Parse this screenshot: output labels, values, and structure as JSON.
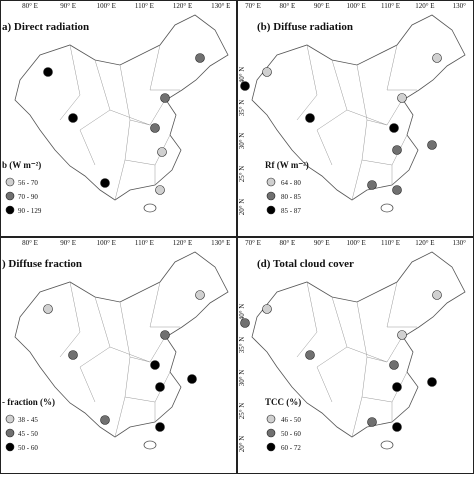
{
  "panels": [
    {
      "title": "a) Direct radiation",
      "x_ticks": [
        "80° E",
        "90° E",
        "100° E",
        "110° E",
        "120° E",
        "130° E"
      ],
      "y_ticks": [],
      "legend": {
        "title": "b (W m⁻²)",
        "items": [
          "56 - 70",
          "70 - 90",
          "90 - 129"
        ]
      }
    },
    {
      "title": "(b) Diffuse radiation",
      "x_ticks": [
        "70° E",
        "80° E",
        "90° E",
        "100° E",
        "110° E",
        "120° E",
        "130°"
      ],
      "y_ticks": [
        "40° N",
        "35° N",
        "30° N",
        "25° N",
        "20° N"
      ],
      "legend": {
        "title": "Rf (W m⁻²)",
        "items": [
          "64 - 80",
          "80 - 85",
          "85 - 87"
        ]
      }
    },
    {
      "title": ") Diffuse fraction",
      "x_ticks": [
        "80° E",
        "90° E",
        "100° E",
        "110° E",
        "120° E",
        "130° E"
      ],
      "y_ticks": [],
      "legend": {
        "title": "- fraction (%)",
        "items": [
          "38 - 45",
          "45 - 50",
          "50 - 60"
        ]
      }
    },
    {
      "title": "(d) Total cloud cover",
      "x_ticks": [
        "70° E",
        "80° E",
        "90° E",
        "100° E",
        "110° E",
        "120° E",
        "130°"
      ],
      "y_ticks": [
        "40° N",
        "35° N",
        "30° N",
        "25° N",
        "20° N"
      ],
      "legend": {
        "title": "TCC (%)",
        "items": [
          "46 - 50",
          "50 - 60",
          "60 - 72"
        ]
      }
    }
  ]
}
